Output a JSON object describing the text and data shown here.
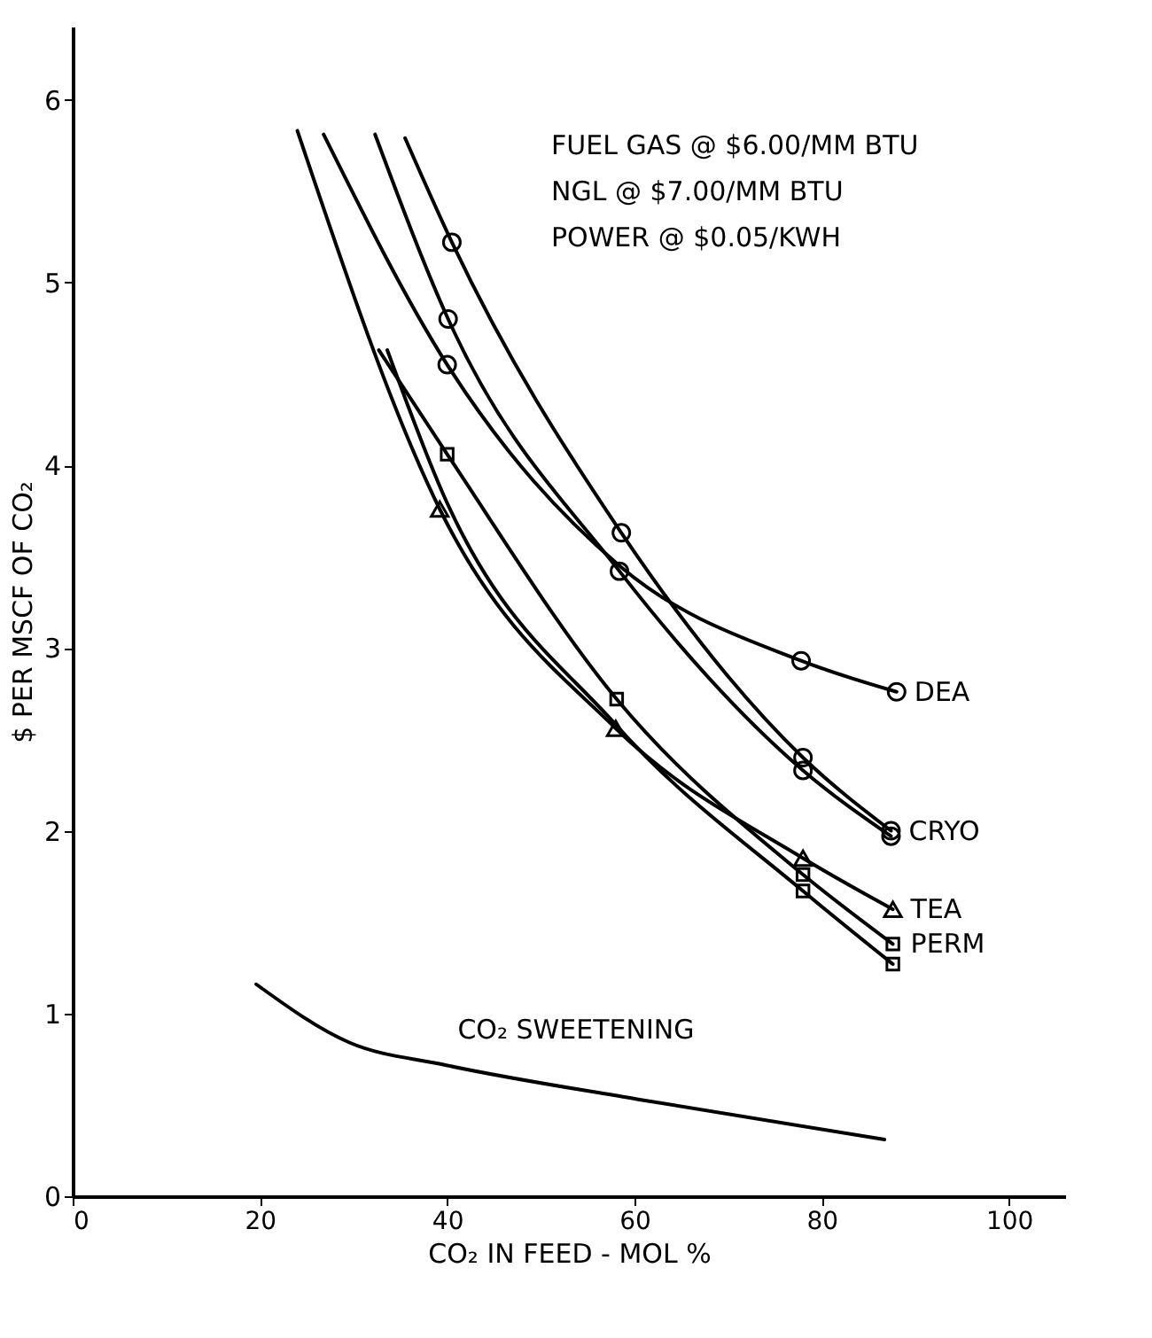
{
  "chart_data": {
    "type": "line",
    "xlabel": "CO₂ IN FEED - MOL %",
    "ylabel": "$ PER MSCF OF CO₂",
    "xlim": [
      0,
      106
    ],
    "ylim": [
      0,
      6.4
    ],
    "xticks": [
      0,
      20,
      40,
      60,
      80,
      100
    ],
    "yticks": [
      0,
      1,
      2,
      3,
      4,
      5,
      6
    ],
    "grid": false,
    "legend": false,
    "marker": "none",
    "line_style": "solid",
    "annotations": [
      "FUEL GAS @ $6.00/MM BTU",
      "NGL @ $7.00/MM BTU",
      "POWER @ $0.05/KWH",
      {
        "text": "CO₂ SWEETENING",
        "x": 39.6,
        "y": 0.72
      }
    ],
    "series": [
      {
        "name": "DEA",
        "type": "line",
        "color": "#000000",
        "x": [
          26.8,
          40,
          58.4,
          77.8,
          88
        ],
        "values": [
          5.81,
          4.55,
          3.45,
          2.93,
          2.76
        ]
      },
      {
        "type": "scatter",
        "marker": "circle",
        "color": "#000000",
        "x": [
          40,
          77.8,
          88
        ],
        "values": [
          4.55,
          2.93,
          2.76
        ]
      },
      {
        "name": "CRYO",
        "type": "line",
        "color": "#000000",
        "x": [
          35.5,
          40.5,
          58.6,
          78,
          87.4
        ],
        "values": [
          5.79,
          5.22,
          3.63,
          2.4,
          2.0
        ]
      },
      {
        "type": "scatter",
        "marker": "circle",
        "color": "#000000",
        "x": [
          40.5,
          58.6,
          78,
          87.4
        ],
        "values": [
          5.22,
          3.63,
          2.4,
          2.0
        ]
      },
      {
        "type": "line",
        "color": "#000000",
        "x": [
          32.3,
          40.1,
          58.4,
          78,
          87.4
        ],
        "values": [
          5.81,
          4.8,
          3.42,
          2.33,
          1.97
        ]
      },
      {
        "type": "scatter",
        "marker": "circle",
        "color": "#000000",
        "x": [
          40.1,
          58.4,
          78,
          87.4
        ],
        "values": [
          4.8,
          3.42,
          2.33,
          1.97
        ]
      },
      {
        "name": "TEA",
        "type": "line",
        "color": "#000000",
        "x": [
          24,
          39.2,
          58,
          78,
          87.6
        ],
        "values": [
          5.83,
          3.76,
          2.56,
          1.85,
          1.57
        ]
      },
      {
        "type": "scatter",
        "marker": "triangle",
        "color": "#000000",
        "x": [
          39.2,
          58,
          78,
          87.6
        ],
        "values": [
          3.76,
          2.56,
          1.85,
          1.57
        ]
      },
      {
        "name": "PERM",
        "type": "line",
        "color": "#000000",
        "x": [
          32.7,
          40,
          58.1,
          78,
          87.6
        ],
        "values": [
          4.63,
          4.06,
          2.72,
          1.76,
          1.38
        ]
      },
      {
        "type": "scatter",
        "marker": "square",
        "color": "#000000",
        "x": [
          40,
          58.1,
          78,
          87.6
        ],
        "values": [
          4.06,
          2.72,
          1.76,
          1.38
        ]
      },
      {
        "type": "line",
        "color": "#000000",
        "x": [
          33.6,
          39.5,
          58,
          78,
          87.6
        ],
        "values": [
          4.63,
          3.85,
          2.58,
          1.67,
          1.27
        ]
      },
      {
        "type": "scatter",
        "marker": "square",
        "color": "#000000",
        "x": [
          78,
          87.6
        ],
        "values": [
          1.67,
          1.27
        ]
      },
      {
        "type": "line",
        "color": "#000000",
        "x": [
          19.6,
          29.6,
          39.6,
          60.4,
          86.7
        ],
        "values": [
          1.16,
          0.84,
          0.72,
          0.53,
          0.31
        ]
      }
    ]
  }
}
